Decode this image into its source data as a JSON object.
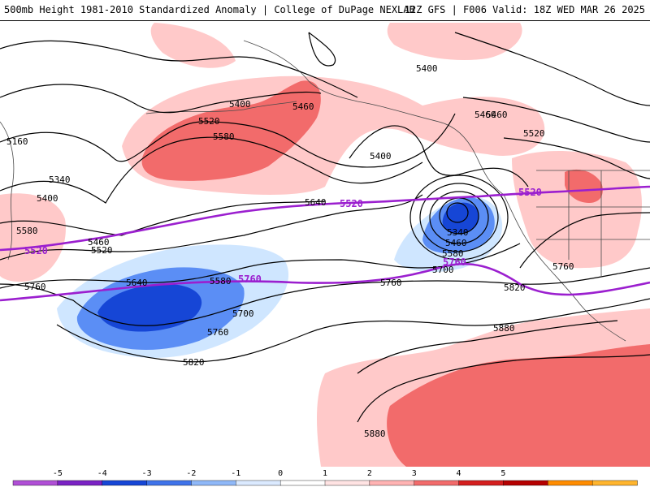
{
  "header": {
    "left_text": "500mb Height 1981-2010 Standardized Anomaly | College of DuPage NEXLAB",
    "right_text": "12Z GFS | F006 Valid: 18Z WED MAR 26 2025"
  },
  "colors": {
    "neg_light": "#cfe6ff",
    "neg_med": "#5b8ef5",
    "neg_dark": "#1646d6",
    "pos_light": "#ffc9c9",
    "pos_med": "#f26b6b",
    "contour": "#000000",
    "purple_contour": "#9b1fcf"
  },
  "contour_labels": {
    "c5400_a": "5400",
    "c5460_a": "5460",
    "c5400_b": "5400",
    "c5460_b": "5460",
    "c5520_a": "5520",
    "c5580_a": "5580",
    "c5160": "5160",
    "c5340_a": "5340",
    "c5400_c": "5400",
    "c5580_b": "5580",
    "c5460_c": "5460",
    "c5520_b": "5520",
    "c5640_a": "5640",
    "c5640_b": "5640",
    "c5580_c": "5580",
    "c5700_a": "5700",
    "c5760_a": "5760",
    "c5760_b": "5760",
    "c5820_a": "5820",
    "c5340_b": "5340",
    "c5460_d": "5460",
    "c5580_d": "5580",
    "c5700_b": "5700",
    "c5760_c": "5760",
    "c5820_b": "5820",
    "c5880_a": "5880",
    "c5880_b": "5880",
    "c5460_e": "5460",
    "c5520_c": "5520",
    "c5760_d": "5760",
    "c5400_d": "5400"
  },
  "purple_labels": {
    "p5520_left": "5520",
    "p5520_mid": "5520",
    "p5520_right": "5520",
    "p5760_left": "5760",
    "p5760_mid": "5760"
  },
  "colorbar": {
    "ticks": [
      "-5",
      "-4",
      "-3",
      "-2",
      "-1",
      "0",
      "1",
      "2",
      "3",
      "4",
      "5"
    ],
    "colors": [
      "#b04fd6",
      "#7a22c4",
      "#1646d6",
      "#3f73ea",
      "#8fb8f8",
      "#dbeaff",
      "#ffffff",
      "#ffe3e3",
      "#ffb3b3",
      "#f26b6b",
      "#d41e1e",
      "#b50000",
      "#ff8c00",
      "#ffb52e"
    ]
  }
}
